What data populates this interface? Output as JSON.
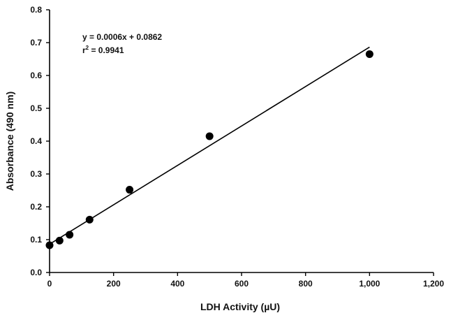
{
  "chart_data": {
    "type": "scatter",
    "xlabel": "LDH Activity (µU)",
    "ylabel": "Absorbance (490 nm)",
    "xlim": [
      0,
      1200
    ],
    "ylim": [
      0,
      0.8
    ],
    "xticks": [
      0,
      200,
      400,
      600,
      800,
      1000,
      1200
    ],
    "xtick_labels": [
      "0",
      "200",
      "400",
      "600",
      "800",
      "1,000",
      "1,200"
    ],
    "yticks": [
      0,
      0.1,
      0.2,
      0.3,
      0.4,
      0.5,
      0.6,
      0.7,
      0.8
    ],
    "ytick_labels": [
      "0.0",
      "0.1",
      "0.2",
      "0.3",
      "0.4",
      "0.5",
      "0.6",
      "0.7",
      "0.8"
    ],
    "grid": false,
    "points": [
      {
        "x": 0,
        "y": 0.083
      },
      {
        "x": 31.25,
        "y": 0.097
      },
      {
        "x": 62.5,
        "y": 0.115
      },
      {
        "x": 125,
        "y": 0.161
      },
      {
        "x": 250,
        "y": 0.252
      },
      {
        "x": 500,
        "y": 0.415
      },
      {
        "x": 1000,
        "y": 0.665
      }
    ],
    "fit_line": {
      "x": [
        0,
        1000
      ],
      "y": [
        0.0862,
        0.6862
      ]
    },
    "annotation": {
      "equation": "y = 0.0006x + 0.0862",
      "r2_prefix": "r",
      "r2_sup": "2",
      "r2_value": " = 0.9941"
    },
    "colors": {
      "points": "#000000",
      "line": "#000000",
      "axes": "#000000"
    }
  }
}
